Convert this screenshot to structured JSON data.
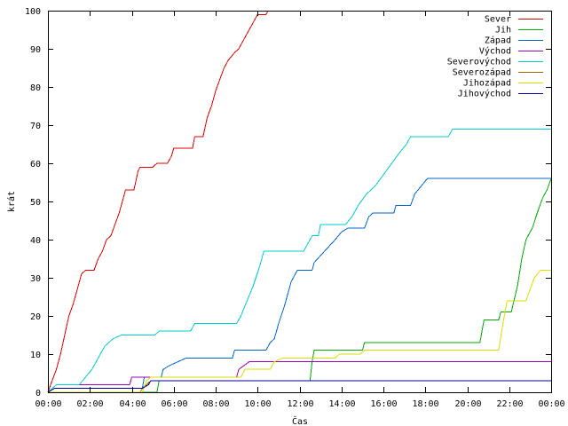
{
  "chart_data": {
    "type": "line",
    "title": "",
    "xlabel": "Čas",
    "ylabel": "krát",
    "xlim": [
      0,
      24
    ],
    "ylim": [
      0,
      100
    ],
    "grid": false,
    "legend_position": "top-right",
    "x_ticks": [
      {
        "value": 0,
        "label": "00:00"
      },
      {
        "value": 2,
        "label": "02:00"
      },
      {
        "value": 4,
        "label": "04:00"
      },
      {
        "value": 6,
        "label": "06:00"
      },
      {
        "value": 8,
        "label": "08:00"
      },
      {
        "value": 10,
        "label": "10:00"
      },
      {
        "value": 12,
        "label": "12:00"
      },
      {
        "value": 14,
        "label": "14:00"
      },
      {
        "value": 16,
        "label": "16:00"
      },
      {
        "value": 18,
        "label": "18:00"
      },
      {
        "value": 20,
        "label": "20:00"
      },
      {
        "value": 22,
        "label": "22:00"
      },
      {
        "value": 24,
        "label": "00:00"
      }
    ],
    "y_ticks": [
      {
        "value": 0,
        "label": "0"
      },
      {
        "value": 10,
        "label": "10"
      },
      {
        "value": 20,
        "label": "20"
      },
      {
        "value": 30,
        "label": "30"
      },
      {
        "value": 40,
        "label": "40"
      },
      {
        "value": 50,
        "label": "50"
      },
      {
        "value": 60,
        "label": "60"
      },
      {
        "value": 70,
        "label": "70"
      },
      {
        "value": 80,
        "label": "80"
      },
      {
        "value": 90,
        "label": "90"
      },
      {
        "value": 100,
        "label": "100"
      }
    ],
    "series": [
      {
        "name": "Sever",
        "color": "#dd0000",
        "points": [
          [
            0,
            0
          ],
          [
            0.2,
            3
          ],
          [
            0.4,
            6
          ],
          [
            0.6,
            10
          ],
          [
            0.8,
            15
          ],
          [
            1,
            20
          ],
          [
            1.2,
            23
          ],
          [
            1.4,
            27
          ],
          [
            1.6,
            31
          ],
          [
            1.8,
            32
          ],
          [
            2.2,
            32
          ],
          [
            2.4,
            35
          ],
          [
            2.6,
            37
          ],
          [
            2.8,
            40
          ],
          [
            3,
            41
          ],
          [
            3.2,
            44
          ],
          [
            3.4,
            47
          ],
          [
            3.6,
            51
          ],
          [
            3.7,
            53
          ],
          [
            4.1,
            53
          ],
          [
            4.3,
            58
          ],
          [
            4.4,
            59
          ],
          [
            5,
            59
          ],
          [
            5.2,
            60
          ],
          [
            5.7,
            60
          ],
          [
            5.9,
            62
          ],
          [
            6,
            64
          ],
          [
            6.9,
            64
          ],
          [
            7,
            67
          ],
          [
            7.4,
            67
          ],
          [
            7.6,
            72
          ],
          [
            7.8,
            75
          ],
          [
            8,
            79
          ],
          [
            8.2,
            82
          ],
          [
            8.4,
            85
          ],
          [
            8.6,
            87
          ],
          [
            8.9,
            89
          ],
          [
            9.1,
            90
          ],
          [
            9.3,
            92
          ],
          [
            9.5,
            94
          ],
          [
            9.7,
            96
          ],
          [
            9.9,
            98
          ],
          [
            10,
            99
          ],
          [
            10.4,
            99
          ],
          [
            10.5,
            100
          ]
        ]
      },
      {
        "name": "Jih",
        "color": "#00aa00",
        "points": [
          [
            0,
            0
          ],
          [
            5.2,
            0
          ],
          [
            5.3,
            3
          ],
          [
            12.5,
            3
          ],
          [
            12.6,
            8
          ],
          [
            12.7,
            11
          ],
          [
            15,
            11
          ],
          [
            15.1,
            13
          ],
          [
            20.6,
            13
          ],
          [
            20.8,
            19
          ],
          [
            21.5,
            19
          ],
          [
            21.6,
            21
          ],
          [
            22.1,
            21
          ],
          [
            22.4,
            28
          ],
          [
            22.6,
            35
          ],
          [
            22.8,
            40
          ],
          [
            23.1,
            43
          ],
          [
            23.4,
            48
          ],
          [
            23.6,
            51
          ],
          [
            23.8,
            53
          ],
          [
            24,
            56
          ]
        ]
      },
      {
        "name": "Západ",
        "color": "#0066cc",
        "points": [
          [
            0,
            0
          ],
          [
            0.3,
            1
          ],
          [
            2.4,
            1
          ],
          [
            2.5,
            1
          ],
          [
            4.5,
            1
          ],
          [
            4.6,
            4
          ],
          [
            5.4,
            4
          ],
          [
            5.5,
            6
          ],
          [
            5.8,
            7
          ],
          [
            6.2,
            8
          ],
          [
            6.6,
            9
          ],
          [
            8.8,
            9
          ],
          [
            8.9,
            11
          ],
          [
            10.4,
            11
          ],
          [
            10.6,
            13
          ],
          [
            10.8,
            14
          ],
          [
            11,
            18
          ],
          [
            11.3,
            23
          ],
          [
            11.6,
            29
          ],
          [
            11.9,
            32
          ],
          [
            12.6,
            32
          ],
          [
            12.7,
            34
          ],
          [
            13.2,
            37
          ],
          [
            13.7,
            40
          ],
          [
            14,
            42
          ],
          [
            14.3,
            43
          ],
          [
            15.1,
            43
          ],
          [
            15.3,
            46
          ],
          [
            15.5,
            47
          ],
          [
            16.5,
            47
          ],
          [
            16.6,
            49
          ],
          [
            17.3,
            49
          ],
          [
            17.5,
            52
          ],
          [
            17.8,
            54
          ],
          [
            18.1,
            56
          ],
          [
            24,
            56
          ]
        ]
      },
      {
        "name": "Východ",
        "color": "#9900bb",
        "points": [
          [
            0,
            0
          ],
          [
            0.4,
            2
          ],
          [
            3.9,
            2
          ],
          [
            4,
            4
          ],
          [
            9,
            4
          ],
          [
            9.1,
            6
          ],
          [
            9.6,
            8
          ],
          [
            24,
            8
          ]
        ]
      },
      {
        "name": "Severovýchod",
        "color": "#00cccc",
        "points": [
          [
            0,
            0
          ],
          [
            0.4,
            2
          ],
          [
            1.5,
            2
          ],
          [
            1.8,
            4
          ],
          [
            2.1,
            6
          ],
          [
            2.4,
            9
          ],
          [
            2.7,
            12
          ],
          [
            3.1,
            14
          ],
          [
            3.5,
            15
          ],
          [
            5.1,
            15
          ],
          [
            5.3,
            16
          ],
          [
            6.8,
            16
          ],
          [
            7,
            18
          ],
          [
            9,
            18
          ],
          [
            9.2,
            20
          ],
          [
            9.5,
            24
          ],
          [
            9.8,
            28
          ],
          [
            10.1,
            33
          ],
          [
            10.3,
            37
          ],
          [
            12.2,
            37
          ],
          [
            12.4,
            39
          ],
          [
            12.6,
            41
          ],
          [
            12.9,
            41
          ],
          [
            13,
            44
          ],
          [
            14.2,
            44
          ],
          [
            14.5,
            46
          ],
          [
            14.8,
            49
          ],
          [
            15.2,
            52
          ],
          [
            15.6,
            54
          ],
          [
            16,
            57
          ],
          [
            16.4,
            60
          ],
          [
            16.8,
            63
          ],
          [
            17.1,
            65
          ],
          [
            17.3,
            67
          ],
          [
            19.1,
            67
          ],
          [
            19.3,
            69
          ],
          [
            24,
            69
          ]
        ]
      },
      {
        "name": "Severozápad",
        "color": "#aa6600",
        "points": [
          [
            0,
            0
          ],
          [
            4.4,
            0
          ],
          [
            4.5,
            1
          ],
          [
            4.7,
            2
          ],
          [
            4.9,
            3
          ],
          [
            5.1,
            3
          ],
          [
            24,
            3
          ]
        ]
      },
      {
        "name": "Jihozápad",
        "color": "#dddd00",
        "points": [
          [
            0,
            0
          ],
          [
            4.5,
            0
          ],
          [
            4.7,
            3
          ],
          [
            4.9,
            4
          ],
          [
            9.2,
            4
          ],
          [
            9.4,
            6
          ],
          [
            10.6,
            6
          ],
          [
            10.8,
            8
          ],
          [
            11.2,
            9
          ],
          [
            13.7,
            9
          ],
          [
            13.9,
            10
          ],
          [
            14.9,
            10
          ],
          [
            15.1,
            11
          ],
          [
            21.5,
            11
          ],
          [
            21.7,
            18
          ],
          [
            21.9,
            24
          ],
          [
            22.8,
            24
          ],
          [
            23,
            27
          ],
          [
            23.2,
            30
          ],
          [
            23.5,
            32
          ],
          [
            24,
            32
          ]
        ]
      },
      {
        "name": "Jihovýchod",
        "color": "#000099",
        "points": [
          [
            0,
            0
          ],
          [
            0.3,
            1
          ],
          [
            4.5,
            1
          ],
          [
            4.8,
            2
          ],
          [
            4.9,
            3
          ],
          [
            5.1,
            3
          ],
          [
            24,
            3
          ]
        ]
      }
    ]
  }
}
